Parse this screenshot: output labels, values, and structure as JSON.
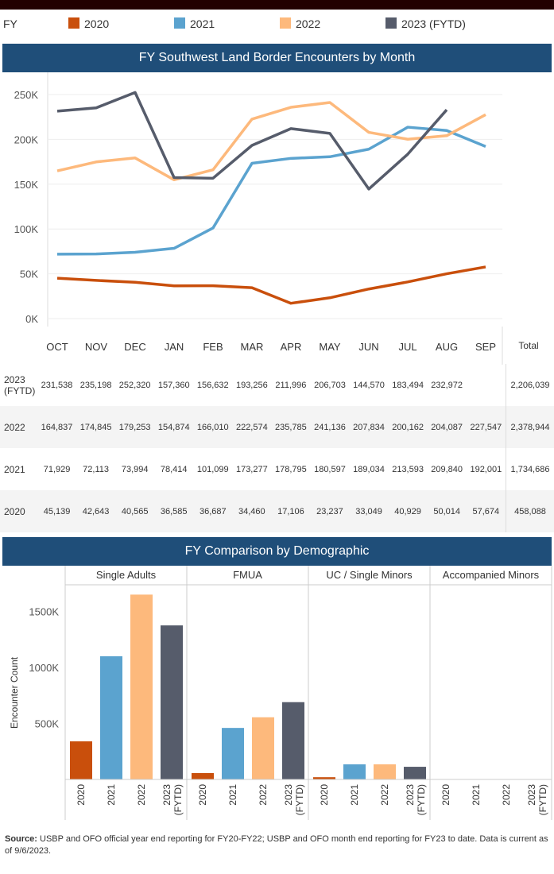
{
  "legend": {
    "title": "FY",
    "items": [
      {
        "label": "2020",
        "color": "#c94f0c"
      },
      {
        "label": "2021",
        "color": "#5ba3cf"
      },
      {
        "label": "2022",
        "color": "#fdb97c"
      },
      {
        "label": "2023 (FYTD)",
        "color": "#565c6b"
      }
    ]
  },
  "chart_data": [
    {
      "type": "line",
      "title": "FY Southwest Land Border Encounters by Month",
      "categories": [
        "OCT",
        "NOV",
        "DEC",
        "JAN",
        "FEB",
        "MAR",
        "APR",
        "MAY",
        "JUN",
        "JUL",
        "AUG",
        "SEP"
      ],
      "yticks": [
        "0K",
        "50K",
        "100K",
        "150K",
        "200K",
        "250K"
      ],
      "ylim": [
        0,
        250000
      ],
      "series": [
        {
          "name": "2023 (FYTD)",
          "row_label": "2023 (FYTD)",
          "values": [
            231538,
            235198,
            252320,
            157360,
            156632,
            193256,
            211996,
            206703,
            144570,
            183494,
            232972,
            null
          ],
          "display": [
            "231,538",
            "235,198",
            "252,320",
            "157,360",
            "156,632",
            "193,256",
            "211,996",
            "206,703",
            "144,570",
            "183,494",
            "232,972",
            ""
          ],
          "total": "2,206,039"
        },
        {
          "name": "2022",
          "row_label": "2022",
          "values": [
            164837,
            174845,
            179253,
            154874,
            166010,
            222574,
            235785,
            241136,
            207834,
            200162,
            204087,
            227547
          ],
          "display": [
            "164,837",
            "174,845",
            "179,253",
            "154,874",
            "166,010",
            "222,574",
            "235,785",
            "241,136",
            "207,834",
            "200,162",
            "204,087",
            "227,547"
          ],
          "total": "2,378,944"
        },
        {
          "name": "2021",
          "row_label": "2021",
          "values": [
            71929,
            72113,
            73994,
            78414,
            101099,
            173277,
            178795,
            180597,
            189034,
            213593,
            209840,
            192001
          ],
          "display": [
            "71,929",
            "72,113",
            "73,994",
            "78,414",
            "101,099",
            "173,277",
            "178,795",
            "180,597",
            "189,034",
            "213,593",
            "209,840",
            "192,001"
          ],
          "total": "1,734,686"
        },
        {
          "name": "2020",
          "row_label": "2020",
          "values": [
            45139,
            42643,
            40565,
            36585,
            36687,
            34460,
            17106,
            23237,
            33049,
            40929,
            50014,
            57674
          ],
          "display": [
            "45,139",
            "42,643",
            "40,565",
            "36,585",
            "36,687",
            "34,460",
            "17,106",
            "23,237",
            "33,049",
            "40,929",
            "50,014",
            "57,674"
          ],
          "total": "458,088"
        }
      ],
      "total_header": "Total"
    },
    {
      "type": "bar",
      "title": "FY Comparison by Demographic",
      "ylabel": "Encounter Count",
      "yticks": [
        "500K",
        "1000K",
        "1500K"
      ],
      "ylim": [
        0,
        1800000
      ],
      "groups": [
        "Single Adults",
        "FMUA",
        "UC / Single Minors",
        "Accompanied Minors"
      ],
      "categories": [
        "2020",
        "2021",
        "2022",
        "2023 (FYTD)"
      ],
      "values": [
        [
          340000,
          1100000,
          1650000,
          1375000
        ],
        [
          57000,
          460000,
          555000,
          690000
        ],
        [
          20000,
          135000,
          135000,
          113000
        ],
        [
          0,
          0,
          0,
          0
        ]
      ]
    }
  ],
  "source": {
    "label": "Source:",
    "text": " USBP and OFO official year end reporting for FY20-FY22; USBP and OFO month end reporting for FY23 to date. Data is current as of 9/6/2023."
  }
}
